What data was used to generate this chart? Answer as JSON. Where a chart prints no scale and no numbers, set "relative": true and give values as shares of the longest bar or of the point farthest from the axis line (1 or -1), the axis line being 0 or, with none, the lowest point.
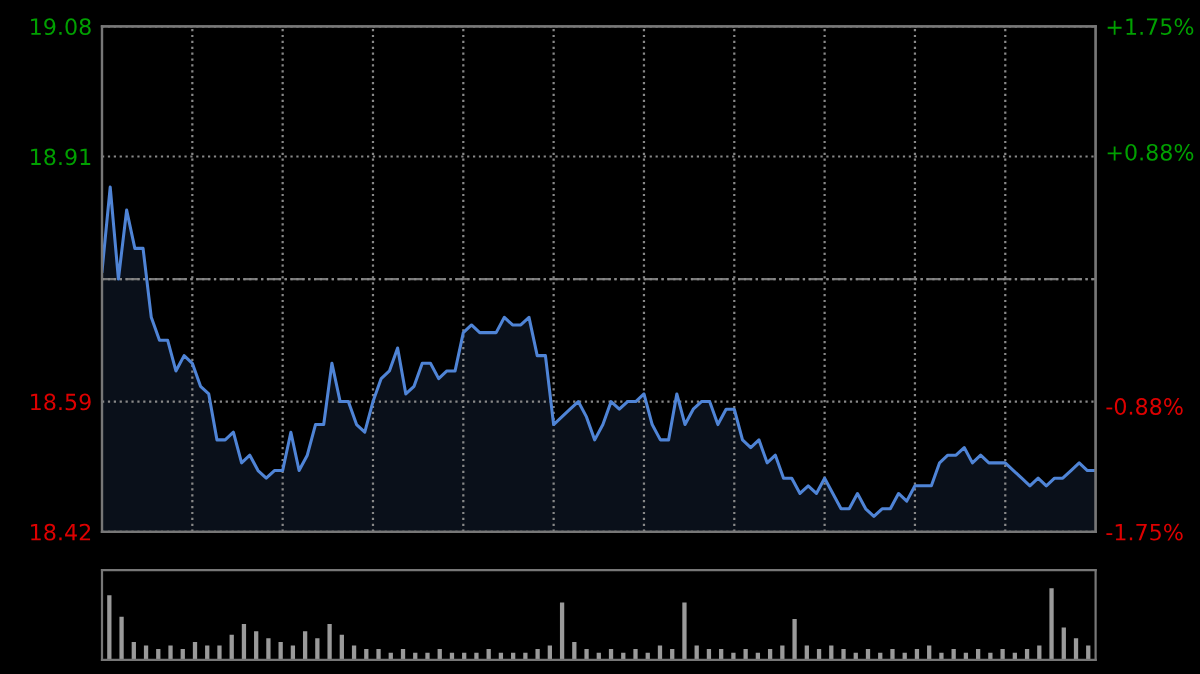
{
  "chart_data": [
    {
      "type": "area",
      "categories": [
        null,
        null,
        null,
        null,
        null,
        null,
        null,
        null,
        null,
        null,
        null,
        null,
        null,
        null,
        null,
        null,
        null,
        null,
        null,
        null,
        null,
        null,
        null,
        null,
        null,
        null,
        null,
        null,
        null,
        null,
        null,
        null,
        null,
        null,
        null,
        null,
        null,
        null,
        null,
        null,
        null,
        null,
        null,
        null,
        null,
        null,
        null,
        null,
        null,
        null,
        null,
        null,
        null,
        null,
        null,
        null,
        null,
        null,
        null,
        null,
        null,
        null,
        null,
        null,
        null,
        null,
        null,
        null,
        null,
        null,
        null,
        null,
        null,
        null,
        null,
        null,
        null,
        null,
        null,
        null,
        null,
        null,
        null,
        null,
        null,
        null,
        null,
        null,
        null,
        null,
        null,
        null,
        null,
        null,
        null,
        null,
        null,
        null,
        null,
        null,
        null,
        null,
        null,
        null,
        null,
        null,
        null,
        null,
        null,
        null,
        null,
        null,
        null,
        null,
        null,
        null,
        null,
        null,
        null,
        null,
        null,
        null
      ],
      "ylim": [
        18.42,
        19.08
      ],
      "yticks": [
        19.08,
        18.91,
        {
          "value": 18.75,
          "label": null
        },
        18.59,
        18.42
      ],
      "y2lim": [
        -1.75,
        1.75
      ],
      "y2ticks": [
        {
          "value": 1.75,
          "label": "+1.75%"
        },
        {
          "value": 0.88,
          "label": "+0.88%"
        },
        {
          "value": 0,
          "label": null
        },
        {
          "value": -0.88,
          "label": "-0.88%"
        },
        {
          "value": -1.75,
          "label": "-1.75%"
        }
      ],
      "grid": true,
      "ref_lines": [
        {
          "axis": "y",
          "value": 18.75,
          "color": "#777777",
          "line_style": "dashdot"
        }
      ],
      "series": [
        {
          "color": "#4f84d6",
          "values": [
            18.76,
            18.87,
            18.75,
            18.84,
            18.79,
            18.79,
            18.7,
            18.67,
            18.67,
            18.63,
            18.65,
            18.64,
            18.61,
            18.6,
            18.54,
            18.54,
            18.55,
            18.51,
            18.52,
            18.5,
            18.49,
            18.5,
            18.5,
            18.55,
            18.5,
            18.52,
            18.56,
            18.56,
            18.64,
            18.59,
            18.59,
            18.56,
            18.55,
            18.59,
            18.62,
            18.63,
            18.66,
            18.6,
            18.61,
            18.64,
            18.64,
            18.62,
            18.63,
            18.63,
            18.68,
            18.69,
            18.68,
            18.68,
            18.68,
            18.7,
            18.69,
            18.69,
            18.7,
            18.65,
            18.65,
            18.56,
            18.57,
            18.58,
            18.59,
            18.57,
            18.54,
            18.56,
            18.59,
            18.58,
            18.59,
            18.59,
            18.6,
            18.56,
            18.54,
            18.54,
            18.6,
            18.56,
            18.58,
            18.59,
            18.59,
            18.56,
            18.58,
            18.58,
            18.54,
            18.53,
            18.54,
            18.51,
            18.52,
            18.49,
            18.49,
            18.47,
            18.48,
            18.47,
            18.49,
            18.47,
            18.45,
            18.45,
            18.47,
            18.45,
            18.44,
            18.45,
            18.45,
            18.47,
            18.46,
            18.48,
            18.48,
            18.48,
            18.51,
            18.52,
            18.52,
            18.53,
            18.51,
            18.52,
            18.51,
            18.51,
            18.51,
            18.5,
            18.49,
            18.48,
            18.49,
            18.48,
            18.49,
            18.49,
            18.5,
            18.51,
            18.5,
            18.5
          ]
        }
      ]
    },
    {
      "type": "bar",
      "relative": true,
      "categories": [
        null,
        null,
        null,
        null,
        null,
        null,
        null,
        null,
        null,
        null,
        null,
        null,
        null,
        null,
        null,
        null,
        null,
        null,
        null,
        null,
        null,
        null,
        null,
        null,
        null,
        null,
        null,
        null,
        null,
        null,
        null,
        null,
        null,
        null,
        null,
        null,
        null,
        null,
        null,
        null,
        null,
        null,
        null,
        null,
        null,
        null,
        null,
        null,
        null,
        null,
        null,
        null,
        null,
        null,
        null,
        null,
        null,
        null,
        null,
        null,
        null,
        null,
        null,
        null,
        null,
        null,
        null,
        null,
        null,
        null,
        null,
        null,
        null,
        null,
        null,
        null,
        null,
        null,
        null,
        null,
        null
      ],
      "series": [
        {
          "color": "#9a9a9a",
          "values": [
            0.9,
            0.6,
            0.25,
            0.2,
            0.15,
            0.2,
            0.15,
            0.25,
            0.2,
            0.2,
            0.35,
            0.5,
            0.4,
            0.3,
            0.25,
            0.2,
            0.4,
            0.3,
            0.5,
            0.35,
            0.2,
            0.15,
            0.15,
            0.1,
            0.15,
            0.1,
            0.1,
            0.15,
            0.1,
            0.1,
            0.1,
            0.15,
            0.1,
            0.1,
            0.1,
            0.15,
            0.2,
            0.8,
            0.25,
            0.15,
            0.1,
            0.15,
            0.1,
            0.15,
            0.1,
            0.2,
            0.15,
            0.8,
            0.2,
            0.15,
            0.15,
            0.1,
            0.15,
            0.1,
            0.15,
            0.2,
            0.57,
            0.2,
            0.15,
            0.2,
            0.15,
            0.1,
            0.15,
            0.1,
            0.15,
            0.1,
            0.15,
            0.2,
            0.1,
            0.15,
            0.1,
            0.15,
            0.1,
            0.15,
            0.1,
            0.15,
            0.2,
            1.0,
            0.45,
            0.3,
            0.2
          ]
        }
      ]
    }
  ]
}
